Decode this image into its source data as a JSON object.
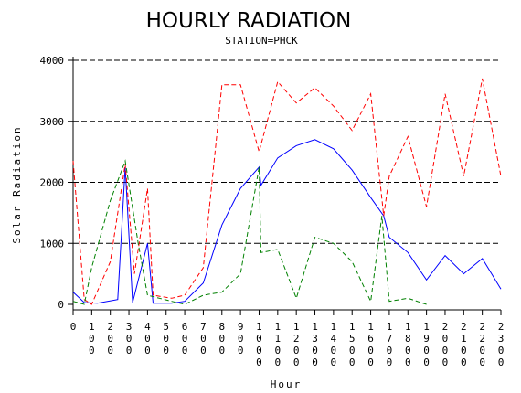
{
  "chart_data": {
    "type": "line",
    "title": "HOURLY RADIATION",
    "subtitle": "STATION=PHCK",
    "xlabel": "Hour",
    "ylabel": "Solar Radiation",
    "x": [
      "0",
      "100",
      "200",
      "300",
      "400",
      "500",
      "600",
      "700",
      "800",
      "900",
      "1000",
      "1100",
      "1200",
      "1300",
      "1400",
      "1500",
      "1600",
      "1700",
      "1800",
      "1900",
      "2000",
      "2100",
      "2200",
      "2300"
    ],
    "xlim": [
      0,
      2300
    ],
    "ylim": [
      0,
      4000
    ],
    "yticks": [
      "0",
      "1000",
      "2000",
      "3000",
      "4000"
    ],
    "grid": "horizontal-dashed",
    "series": [
      {
        "color": "#0000ff",
        "dash": "solid",
        "points": [
          [
            0,
            200
          ],
          [
            60,
            30
          ],
          [
            130,
            20
          ],
          [
            240,
            80
          ],
          [
            280,
            2250
          ],
          [
            320,
            30
          ],
          [
            400,
            1000
          ],
          [
            430,
            20
          ],
          [
            530,
            20
          ],
          [
            600,
            50
          ],
          [
            700,
            350
          ],
          [
            800,
            1300
          ],
          [
            900,
            1900
          ],
          [
            1000,
            2250
          ],
          [
            1010,
            1950
          ],
          [
            1100,
            2400
          ],
          [
            1200,
            2600
          ],
          [
            1300,
            2700
          ],
          [
            1400,
            2550
          ],
          [
            1500,
            2200
          ],
          [
            1600,
            1750
          ],
          [
            1670,
            1450
          ],
          [
            1700,
            1100
          ],
          [
            1800,
            850
          ],
          [
            1900,
            400
          ],
          [
            2000,
            800
          ],
          [
            2100,
            500
          ],
          [
            2200,
            750
          ],
          [
            2300,
            250
          ]
        ]
      },
      {
        "color": "#ff0000",
        "dash": "dashed",
        "points": [
          [
            0,
            2350
          ],
          [
            60,
            80
          ],
          [
            100,
            0
          ],
          [
            200,
            700
          ],
          [
            280,
            2300
          ],
          [
            330,
            500
          ],
          [
            400,
            1900
          ],
          [
            430,
            150
          ],
          [
            530,
            100
          ],
          [
            600,
            150
          ],
          [
            700,
            600
          ],
          [
            800,
            3600
          ],
          [
            900,
            3600
          ],
          [
            1000,
            2500
          ],
          [
            1100,
            3650
          ],
          [
            1200,
            3300
          ],
          [
            1300,
            3550
          ],
          [
            1400,
            3250
          ],
          [
            1500,
            2850
          ],
          [
            1600,
            3450
          ],
          [
            1670,
            1450
          ],
          [
            1700,
            2100
          ],
          [
            1800,
            2750
          ],
          [
            1900,
            1600
          ],
          [
            2000,
            3450
          ],
          [
            2100,
            2100
          ],
          [
            2200,
            3700
          ],
          [
            2300,
            2100
          ]
        ]
      },
      {
        "color": "#008000",
        "dash": "dashed",
        "points": [
          [
            0,
            50
          ],
          [
            60,
            0
          ],
          [
            100,
            600
          ],
          [
            200,
            1700
          ],
          [
            280,
            2350
          ],
          [
            350,
            1000
          ],
          [
            400,
            150
          ],
          [
            530,
            50
          ],
          [
            600,
            0
          ],
          [
            700,
            150
          ],
          [
            800,
            200
          ],
          [
            900,
            500
          ],
          [
            1000,
            2250
          ],
          [
            1010,
            850
          ],
          [
            1100,
            900
          ],
          [
            1200,
            100
          ],
          [
            1300,
            1100
          ],
          [
            1400,
            1000
          ],
          [
            1500,
            700
          ],
          [
            1600,
            50
          ],
          [
            1660,
            1450
          ],
          [
            1700,
            50
          ],
          [
            1800,
            100
          ],
          [
            1900,
            0
          ]
        ]
      }
    ]
  }
}
